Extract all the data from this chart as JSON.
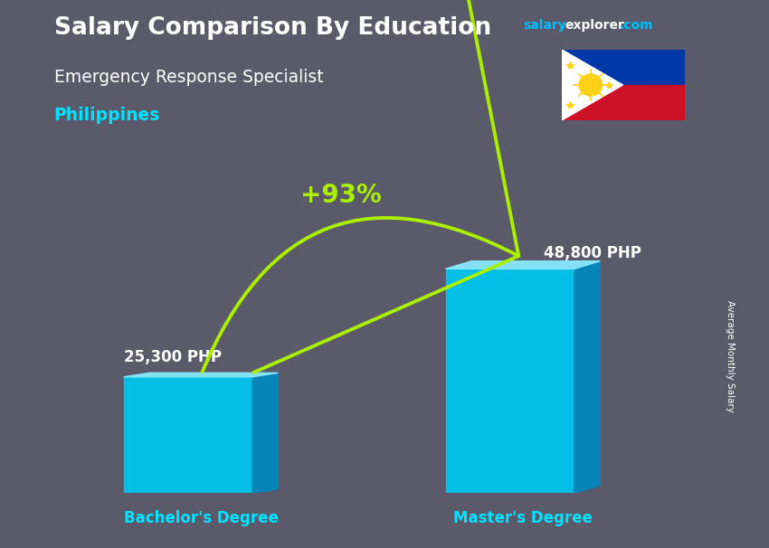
{
  "title": "Salary Comparison By Education",
  "subtitle": "Emergency Response Specialist",
  "country": "Philippines",
  "categories": [
    "Bachelor's Degree",
    "Master's Degree"
  ],
  "values": [
    25300,
    48800
  ],
  "value_labels": [
    "25,300 PHP",
    "48,800 PHP"
  ],
  "pct_change": "+93%",
  "bar_color_face": "#00C8F0",
  "bar_color_side": "#0088BB",
  "bar_color_top": "#88E8FF",
  "ylabel": "Average Monthly Salary",
  "title_color": "#FFFFFF",
  "subtitle_color": "#FFFFFF",
  "country_color": "#00E5FF",
  "category_color": "#00E5FF",
  "value_color": "#FFFFFF",
  "pct_color": "#AAEE00",
  "site_color_salary": "#00BFFF",
  "site_color_explorer": "#FFFFFF",
  "background_color": "#5a5a6a",
  "arrow_color": "#AAEE00",
  "ylim": [
    0,
    62000
  ],
  "bar_width": 0.48
}
